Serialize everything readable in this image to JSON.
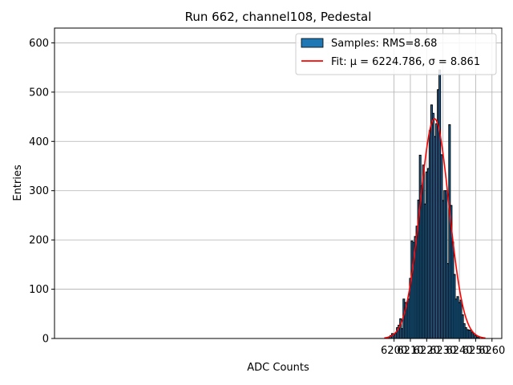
{
  "chart_data": {
    "type": "bar",
    "title": "Run 662, channel108, Pedestal",
    "xlabel": "ADC Counts",
    "ylabel": "Entries",
    "xlim": [
      5992,
      6266
    ],
    "ylim": [
      0,
      630
    ],
    "xticks": [
      6200,
      6210,
      6220,
      6230,
      6240,
      6250,
      6260
    ],
    "yticks": [
      0,
      100,
      200,
      300,
      400,
      500,
      600
    ],
    "grid": true,
    "legend_placement": "top-right",
    "bin_width": 1,
    "histogram": {
      "name": "Samples: RMS=8.68",
      "color": "#1f77b4",
      "edge_color": "#000000",
      "bin_centers": [
        6197,
        6198,
        6199,
        6200,
        6201,
        6202,
        6203,
        6204,
        6205,
        6206,
        6207,
        6208,
        6209,
        6210,
        6211,
        6212,
        6213,
        6214,
        6215,
        6216,
        6217,
        6218,
        6219,
        6220,
        6221,
        6222,
        6223,
        6224,
        6225,
        6226,
        6227,
        6228,
        6229,
        6230,
        6231,
        6232,
        6233,
        6234,
        6235,
        6236,
        6237,
        6238,
        6239,
        6240,
        6241,
        6242,
        6243,
        6244,
        6245,
        6246,
        6247,
        6248,
        6249,
        6250,
        6251,
        6252
      ],
      "counts": [
        3,
        6,
        10,
        8,
        10,
        22,
        27,
        40,
        20,
        80,
        73,
        73,
        80,
        122,
        198,
        195,
        207,
        228,
        281,
        372,
        310,
        352,
        273,
        338,
        345,
        422,
        474,
        457,
        410,
        436,
        505,
        545,
        373,
        280,
        300,
        300,
        152,
        434,
        270,
        196,
        130,
        80,
        85,
        73,
        78,
        48,
        30,
        22,
        18,
        17,
        17,
        12,
        10,
        6,
        3,
        3
      ]
    },
    "fit": {
      "name": "Fit: μ = 6224.786, σ = 8.861",
      "color": "#ff0000",
      "mu": 6224.786,
      "sigma": 8.861,
      "amplitude": 446,
      "x_range": [
        6194,
        6256
      ]
    }
  }
}
